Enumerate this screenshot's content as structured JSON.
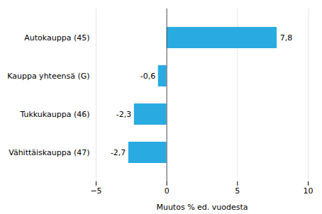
{
  "chart_data": {
    "type": "bar",
    "orientation": "horizontal",
    "categories": [
      "Autokauppa (45)",
      "Kauppa yhteensä (G)",
      "Tukkukauppa (46)",
      "Vähittäiskauppa (47)"
    ],
    "values": [
      7.8,
      -0.6,
      -2.3,
      -2.7
    ],
    "value_labels": [
      "7,8",
      "-0,6",
      "-2,3",
      "-2,7"
    ],
    "data_labels": true,
    "color": "#29abe2",
    "xlabel": "Muutos % ed. vuodesta",
    "xlim": [
      -5,
      10
    ],
    "xticks": [
      -5,
      0,
      5,
      10
    ],
    "grid": true
  }
}
